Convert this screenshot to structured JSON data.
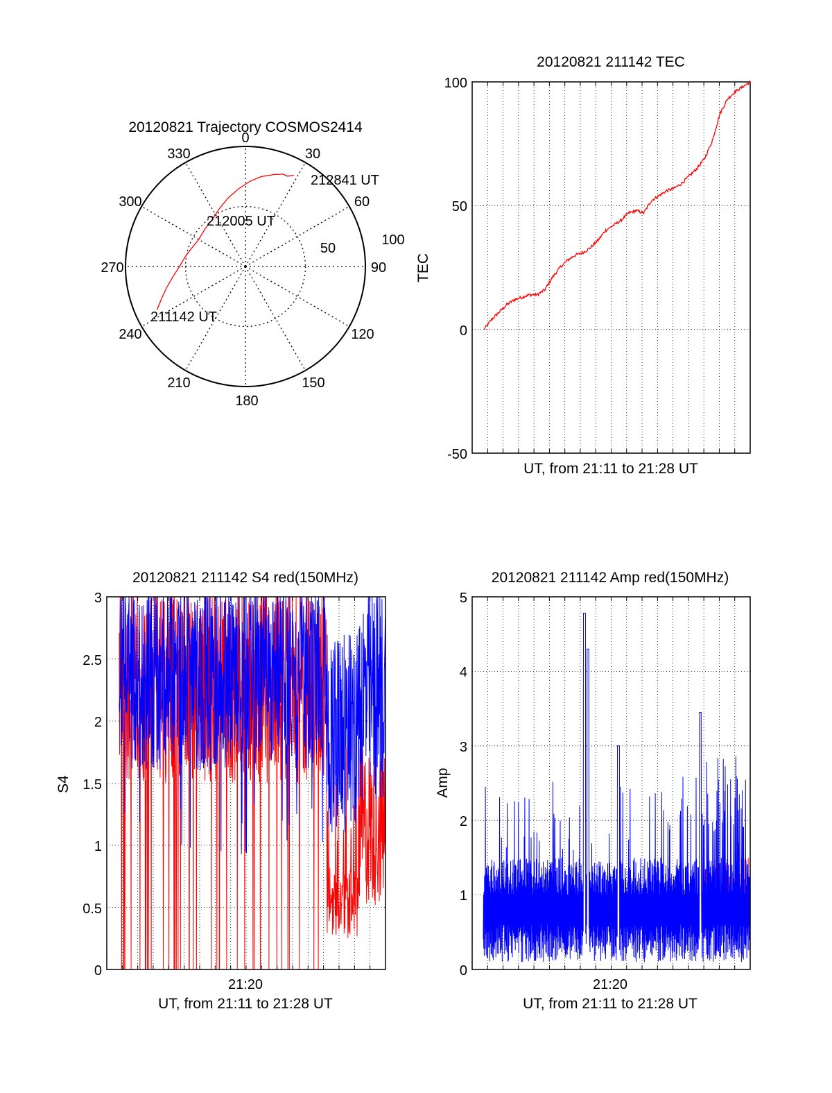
{
  "colors": {
    "primary": "#ff0000",
    "secondary": "#0000ff",
    "axis": "#000000",
    "grid": "#000000"
  },
  "chart_data": [
    {
      "type": "polar",
      "title": "20120821 Trajectory COSMOS2414",
      "angle_labels": [
        "0",
        "30",
        "60",
        "90",
        "120",
        "150",
        "180",
        "210",
        "240",
        "270",
        "300",
        "330"
      ],
      "radial_labels": [
        "50",
        "100"
      ],
      "grid": true,
      "series": [
        {
          "color": "#ff0000",
          "points": [
            {
              "azimuth": 244,
              "r": 82
            },
            {
              "azimuth": 249,
              "r": 75
            },
            {
              "azimuth": 255,
              "r": 68
            },
            {
              "azimuth": 262,
              "r": 61
            },
            {
              "azimuth": 270,
              "r": 55
            },
            {
              "azimuth": 279,
              "r": 51
            },
            {
              "azimuth": 290,
              "r": 47
            },
            {
              "azimuth": 300,
              "r": 45
            },
            {
              "azimuth": 313,
              "r": 46
            },
            {
              "azimuth": 325,
              "r": 48
            },
            {
              "azimuth": 336,
              "r": 53
            },
            {
              "azimuth": 346,
              "r": 59
            },
            {
              "azimuth": 355,
              "r": 65
            },
            {
              "azimuth": 3,
              "r": 71
            },
            {
              "azimuth": 10,
              "r": 76
            },
            {
              "azimuth": 17,
              "r": 80
            },
            {
              "azimuth": 22,
              "r": 83
            },
            {
              "azimuth": 25,
              "r": 83
            },
            {
              "azimuth": 28,
              "r": 86
            }
          ]
        }
      ],
      "annotations": [
        {
          "text": "212841 UT",
          "azimuth": 34,
          "r": 86
        },
        {
          "text": "212005 UT",
          "azimuth": 349,
          "r": 40
        },
        {
          "text": "211142 UT",
          "azimuth": 236,
          "r": 66
        }
      ]
    },
    {
      "type": "line",
      "title": "20120821 211142 TEC",
      "xlabel": "UT, from 21:11 to 21:28 UT",
      "ylabel": "TEC",
      "ylim": [
        -50,
        100
      ],
      "yticks": [
        "100",
        "50",
        "0",
        "-50"
      ],
      "grid": true,
      "series": [
        {
          "color": "#ff0000",
          "x_minutes_points": [
            [
              0,
              0
            ],
            [
              0.5,
              4
            ],
            [
              1,
              7
            ],
            [
              1.5,
              10
            ],
            [
              2,
              12
            ],
            [
              2.5,
              13
            ],
            [
              3,
              14
            ],
            [
              3.5,
              14
            ],
            [
              4,
              16
            ],
            [
              4.5,
              21
            ],
            [
              5,
              25
            ],
            [
              5.5,
              28
            ],
            [
              6,
              30
            ],
            [
              6.5,
              31
            ],
            [
              7,
              33
            ],
            [
              7.5,
              36
            ],
            [
              8,
              40
            ],
            [
              8.5,
              42
            ],
            [
              9,
              44
            ],
            [
              9.5,
              47
            ],
            [
              10,
              48
            ],
            [
              10.5,
              47
            ],
            [
              11,
              52
            ],
            [
              11.5,
              54
            ],
            [
              12,
              56
            ],
            [
              12.5,
              57
            ],
            [
              13,
              59
            ],
            [
              13.5,
              62
            ],
            [
              14,
              65
            ],
            [
              14.5,
              69
            ],
            [
              15,
              76
            ],
            [
              15.5,
              87
            ],
            [
              16,
              93
            ],
            [
              16.5,
              96
            ],
            [
              17,
              98
            ],
            [
              17.5,
              100
            ]
          ]
        }
      ]
    },
    {
      "type": "line",
      "title": "20120821 211142 S4 red(150MHz)",
      "xlabel": "UT, from 21:11 to 21:28 UT",
      "ylabel": "S4",
      "xtick_label": "21:20",
      "ylim": [
        0,
        3
      ],
      "yticks": [
        "0",
        "0.5",
        "1",
        "1.5",
        "2",
        "2.5",
        "3"
      ],
      "grid": true,
      "series": [
        {
          "color": "#ff0000",
          "baseline_level": 1.9,
          "late_dip_level": 0.3
        },
        {
          "color": "#0000ff",
          "baseline_level": 2.3,
          "late_dip_level": 1.3
        }
      ]
    },
    {
      "type": "line",
      "title": "20120821 211142 Amp red(150MHz)",
      "xlabel": "UT, from 21:11 to 21:28 UT",
      "ylabel": "Amp",
      "xtick_label": "21:20",
      "ylim": [
        0,
        5
      ],
      "yticks": [
        "0",
        "1",
        "2",
        "3",
        "4",
        "5"
      ],
      "grid": true,
      "series": [
        {
          "color": "#0000ff",
          "baseline_level": 1.0,
          "peak_value": 4.8
        },
        {
          "color": "#ff0000",
          "baseline_level": 1.0
        }
      ]
    }
  ]
}
